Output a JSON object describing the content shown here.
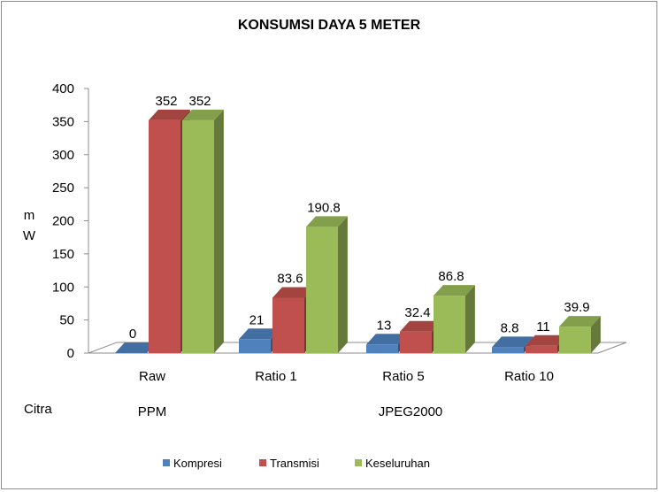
{
  "chart_data": {
    "type": "bar",
    "title": "KONSUMSI DAYA 5 METER",
    "ylabel_lines": [
      "m",
      "W"
    ],
    "xlabel": "Citra",
    "categories": [
      "Raw",
      "Ratio 1",
      "Ratio 5",
      "Ratio 10"
    ],
    "group_labels": [
      {
        "label": "PPM",
        "categories": [
          "Raw"
        ]
      },
      {
        "label": "JPEG2000",
        "categories": [
          "Ratio 1",
          "Ratio 5",
          "Ratio 10"
        ]
      }
    ],
    "series": [
      {
        "name": "Kompresi",
        "values": [
          0,
          21,
          13,
          8.8
        ],
        "labels": [
          "0",
          "21",
          "13",
          "8.8"
        ],
        "color": "#4f81bd"
      },
      {
        "name": "Transmisi",
        "values": [
          352,
          83.6,
          32.4,
          11
        ],
        "labels": [
          "352",
          "83.6",
          "32.4",
          "11"
        ],
        "color": "#c0504d"
      },
      {
        "name": "Keseluruhan",
        "values": [
          352,
          190.8,
          86.8,
          39.9
        ],
        "labels": [
          "352",
          "190.8",
          "86.8",
          "39.9"
        ],
        "color": "#9bbb59"
      }
    ],
    "ylim": [
      0,
      400
    ],
    "yticks": [
      0,
      50,
      100,
      150,
      200,
      250,
      300,
      350,
      400
    ],
    "grid": false,
    "legend_position": "bottom",
    "style": "3d-clustered-column"
  }
}
